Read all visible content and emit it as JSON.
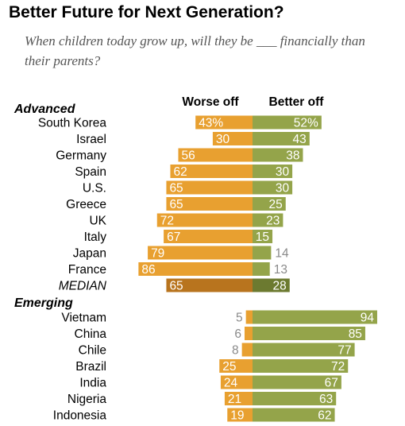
{
  "header": {
    "title": "Better Future for Next Generation?",
    "subtitle": "When children today grow up, will they be ___ financially than their parents?"
  },
  "colors": {
    "worse": "#e8a030",
    "better": "#94a44a",
    "median_worse": "#b8741e",
    "median_better": "#6c7a30",
    "label_inside": "#ffffff",
    "label_outside": "#8a8a8a"
  },
  "chart_data": {
    "type": "bar",
    "orientation": "horizontal-diverging",
    "column_headers": {
      "worse": "Worse off",
      "better": "Better off"
    },
    "groups": [
      {
        "name": "Advanced",
        "rows": [
          {
            "label": "South Korea",
            "worse": 43,
            "better": 52,
            "worse_label": "43%",
            "better_label": "52%"
          },
          {
            "label": "Israel",
            "worse": 30,
            "better": 43,
            "worse_label": "30",
            "better_label": "43"
          },
          {
            "label": "Germany",
            "worse": 56,
            "better": 38,
            "worse_label": "56",
            "better_label": "38"
          },
          {
            "label": "Spain",
            "worse": 62,
            "better": 30,
            "worse_label": "62",
            "better_label": "30"
          },
          {
            "label": "U.S.",
            "worse": 65,
            "better": 30,
            "worse_label": "65",
            "better_label": "30"
          },
          {
            "label": "Greece",
            "worse": 65,
            "better": 25,
            "worse_label": "65",
            "better_label": "25"
          },
          {
            "label": "UK",
            "worse": 72,
            "better": 23,
            "worse_label": "72",
            "better_label": "23"
          },
          {
            "label": "Italy",
            "worse": 67,
            "better": 15,
            "worse_label": "67",
            "better_label": "15"
          },
          {
            "label": "Japan",
            "worse": 79,
            "better": 14,
            "worse_label": "79",
            "better_label": "14"
          },
          {
            "label": "France",
            "worse": 86,
            "better": 13,
            "worse_label": "86",
            "better_label": "13"
          },
          {
            "label": "MEDIAN",
            "worse": 65,
            "better": 28,
            "worse_label": "65",
            "better_label": "28",
            "median": true
          }
        ]
      },
      {
        "name": "Emerging",
        "rows": [
          {
            "label": "Vietnam",
            "worse": 5,
            "better": 94,
            "worse_label": "5",
            "better_label": "94"
          },
          {
            "label": "China",
            "worse": 6,
            "better": 85,
            "worse_label": "6",
            "better_label": "85"
          },
          {
            "label": "Chile",
            "worse": 8,
            "better": 77,
            "worse_label": "8",
            "better_label": "77"
          },
          {
            "label": "Brazil",
            "worse": 25,
            "better": 72,
            "worse_label": "25",
            "better_label": "72"
          },
          {
            "label": "India",
            "worse": 24,
            "better": 67,
            "worse_label": "24",
            "better_label": "67"
          },
          {
            "label": "Nigeria",
            "worse": 21,
            "better": 63,
            "worse_label": "21",
            "better_label": "63"
          },
          {
            "label": "Indonesia",
            "worse": 19,
            "better": 62,
            "worse_label": "19",
            "better_label": "62"
          }
        ]
      }
    ],
    "xlim": [
      0,
      100
    ],
    "grid": false,
    "legend": "column headers above bars"
  }
}
